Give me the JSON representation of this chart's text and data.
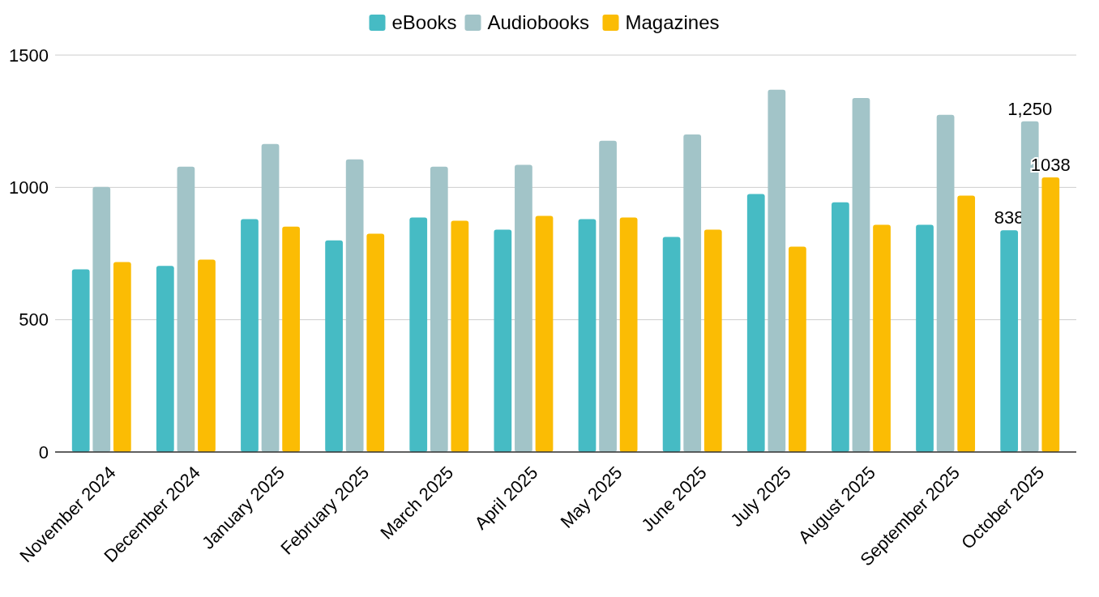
{
  "chart_data": {
    "type": "bar",
    "categories": [
      "November 2024",
      "December 2024",
      "January 2025",
      "February 2025",
      "March 2025",
      "April 2025",
      "May 2025",
      "June 2025",
      "July 2025",
      "August 2025",
      "September 2025",
      "October 2025"
    ],
    "series": [
      {
        "name": "eBooks",
        "color": "#46bbc4",
        "values": [
          690,
          703,
          880,
          800,
          886,
          840,
          880,
          813,
          975,
          944,
          859,
          838
        ],
        "value_labels": [
          null,
          null,
          null,
          null,
          null,
          null,
          null,
          null,
          null,
          null,
          null,
          "838"
        ]
      },
      {
        "name": "Audiobooks",
        "color": "#a2c4c8",
        "values": [
          1002,
          1078,
          1164,
          1106,
          1078,
          1085,
          1176,
          1200,
          1369,
          1338,
          1274,
          1250
        ],
        "value_labels": [
          null,
          null,
          null,
          null,
          null,
          null,
          null,
          null,
          null,
          null,
          null,
          "1,250"
        ]
      },
      {
        "name": "Magazines",
        "color": "#fbbc04",
        "values": [
          718,
          727,
          852,
          825,
          874,
          892,
          886,
          840,
          776,
          859,
          969,
          1038
        ],
        "value_labels": [
          null,
          null,
          null,
          null,
          null,
          null,
          null,
          null,
          null,
          null,
          null,
          "1038"
        ]
      }
    ],
    "ylim": [
      0,
      1500
    ],
    "yticks": [
      0,
      500,
      1000,
      1500
    ],
    "grid": "y",
    "legend": "top"
  }
}
